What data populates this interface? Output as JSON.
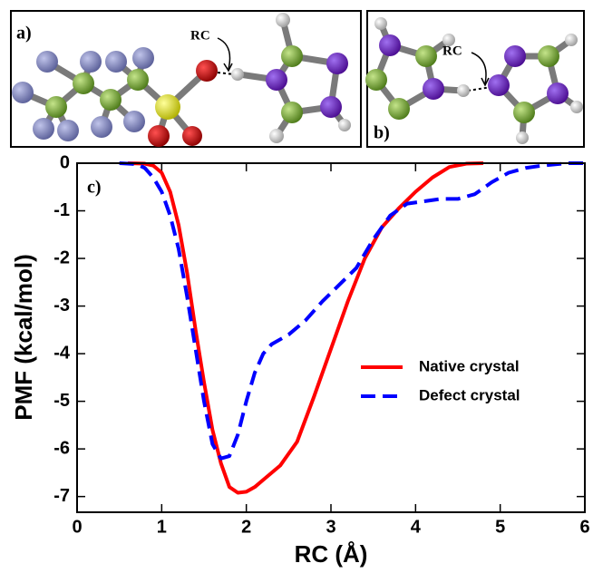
{
  "annotations": {
    "panel_a": "a)",
    "panel_b": "b)",
    "panel_c": "c)",
    "rc_a": "RC",
    "rc_b": "RC"
  },
  "chart_data": {
    "type": "line",
    "xlabel": "RC (Å)",
    "ylabel": "PMF (kcal/mol)",
    "xlim": [
      0,
      6
    ],
    "xticks": [
      0,
      1,
      2,
      3,
      4,
      5,
      6
    ],
    "ylim": [
      -7.33,
      0
    ],
    "yticks": [
      0,
      -1,
      -2,
      -3,
      -4,
      -5,
      -6,
      -7
    ],
    "legend": "center right",
    "series": [
      {
        "name": "Native crystal",
        "color": "#ff0000",
        "linestyle": "solid",
        "x": [
          0.6,
          0.8,
          0.9,
          1.0,
          1.1,
          1.2,
          1.3,
          1.4,
          1.5,
          1.6,
          1.7,
          1.8,
          1.9,
          2.0,
          2.1,
          2.2,
          2.4,
          2.6,
          2.8,
          3.0,
          3.2,
          3.4,
          3.6,
          3.8,
          4.0,
          4.2,
          4.4,
          4.6,
          4.8
        ],
        "values": [
          0,
          -0.01,
          -0.05,
          -0.2,
          -0.6,
          -1.3,
          -2.3,
          -3.5,
          -4.6,
          -5.6,
          -6.3,
          -6.8,
          -6.92,
          -6.9,
          -6.8,
          -6.65,
          -6.35,
          -5.85,
          -4.9,
          -3.9,
          -2.9,
          -2.0,
          -1.35,
          -0.95,
          -0.6,
          -0.3,
          -0.08,
          -0.01,
          0
        ]
      },
      {
        "name": "Defect crystal",
        "color": "#0000ff",
        "linestyle": "dashed",
        "x": [
          0.5,
          0.7,
          0.8,
          0.9,
          1.0,
          1.1,
          1.2,
          1.3,
          1.4,
          1.5,
          1.6,
          1.7,
          1.8,
          1.9,
          2.0,
          2.1,
          2.2,
          2.3,
          2.5,
          2.7,
          2.9,
          3.1,
          3.3,
          3.5,
          3.7,
          3.9,
          4.1,
          4.3,
          4.5,
          4.7,
          4.9,
          5.1,
          5.3,
          5.5,
          5.8,
          6.0
        ],
        "values": [
          0,
          -0.02,
          -0.1,
          -0.3,
          -0.6,
          -1.1,
          -1.8,
          -2.8,
          -3.9,
          -5.0,
          -5.9,
          -6.2,
          -6.15,
          -5.7,
          -5.0,
          -4.4,
          -4.0,
          -3.8,
          -3.6,
          -3.3,
          -2.9,
          -2.55,
          -2.2,
          -1.6,
          -1.1,
          -0.85,
          -0.8,
          -0.75,
          -0.75,
          -0.65,
          -0.4,
          -0.2,
          -0.1,
          -0.05,
          0,
          0
        ]
      }
    ]
  }
}
